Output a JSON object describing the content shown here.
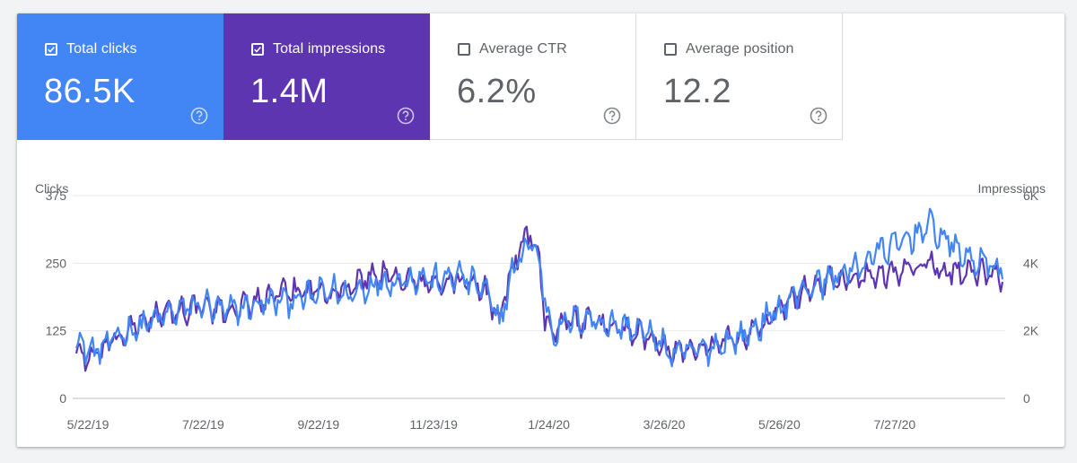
{
  "tiles": [
    {
      "id": "total-clicks",
      "label": "Total clicks",
      "value": "86.5K",
      "checked": true,
      "color": "#4285f4"
    },
    {
      "id": "total-impressions",
      "label": "Total impressions",
      "value": "1.4M",
      "checked": true,
      "color": "#5e35b1"
    },
    {
      "id": "average-ctr",
      "label": "Average CTR",
      "value": "6.2%",
      "checked": false,
      "color": "#ffffff"
    },
    {
      "id": "average-position",
      "label": "Average position",
      "value": "12.2",
      "checked": false,
      "color": "#ffffff"
    }
  ],
  "chart_data": {
    "type": "line",
    "y_left_label": "Clicks",
    "y_right_label": "Impressions",
    "y_left_ticks": [
      "375",
      "250",
      "125",
      "0"
    ],
    "y_right_ticks": [
      "6K",
      "4K",
      "2K",
      "0"
    ],
    "y_left_range": [
      0,
      375
    ],
    "y_right_range": [
      0,
      6000
    ],
    "x_ticks": [
      "5/22/19",
      "7/22/19",
      "9/22/19",
      "11/23/19",
      "1/24/20",
      "3/26/20",
      "5/26/20",
      "7/27/20"
    ],
    "grid": true,
    "series": [
      {
        "key": "clicks",
        "axis": "left",
        "color": "#4285f4",
        "anchors": [
          [
            0,
            110
          ],
          [
            8,
            85
          ],
          [
            15,
            95
          ],
          [
            25,
            120
          ],
          [
            40,
            140
          ],
          [
            55,
            160
          ],
          [
            70,
            175
          ],
          [
            80,
            160
          ],
          [
            95,
            170
          ],
          [
            110,
            180
          ],
          [
            125,
            185
          ],
          [
            140,
            200
          ],
          [
            150,
            190
          ],
          [
            165,
            215
          ],
          [
            180,
            220
          ],
          [
            190,
            225
          ],
          [
            200,
            215
          ],
          [
            210,
            230
          ],
          [
            225,
            200
          ],
          [
            233,
            140
          ],
          [
            240,
            230
          ],
          [
            245,
            265
          ],
          [
            250,
            295
          ],
          [
            255,
            250
          ],
          [
            258,
            190
          ],
          [
            262,
            120
          ],
          [
            270,
            140
          ],
          [
            280,
            150
          ],
          [
            290,
            140
          ],
          [
            300,
            135
          ],
          [
            310,
            125
          ],
          [
            320,
            110
          ],
          [
            328,
            80
          ],
          [
            335,
            85
          ],
          [
            345,
            90
          ],
          [
            355,
            100
          ],
          [
            370,
            120
          ],
          [
            380,
            145
          ],
          [
            390,
            175
          ],
          [
            400,
            200
          ],
          [
            410,
            215
          ],
          [
            420,
            230
          ],
          [
            430,
            240
          ],
          [
            440,
            270
          ],
          [
            450,
            280
          ],
          [
            460,
            300
          ],
          [
            470,
            320
          ],
          [
            480,
            290
          ],
          [
            490,
            260
          ],
          [
            500,
            250
          ],
          [
            510,
            240
          ]
        ],
        "noise": 30
      },
      {
        "key": "impressions",
        "axis": "right",
        "color": "#5e35b1",
        "anchors": [
          [
            0,
            1420
          ],
          [
            8,
            1150
          ],
          [
            15,
            1450
          ],
          [
            25,
            1840
          ],
          [
            40,
            2400
          ],
          [
            55,
            2560
          ],
          [
            70,
            2720
          ],
          [
            80,
            2560
          ],
          [
            95,
            2800
          ],
          [
            110,
            3040
          ],
          [
            125,
            3200
          ],
          [
            140,
            3200
          ],
          [
            150,
            3280
          ],
          [
            165,
            3680
          ],
          [
            180,
            3520
          ],
          [
            190,
            3440
          ],
          [
            200,
            3360
          ],
          [
            210,
            3520
          ],
          [
            225,
            3200
          ],
          [
            233,
            2400
          ],
          [
            240,
            3840
          ],
          [
            245,
            4480
          ],
          [
            250,
            4960
          ],
          [
            255,
            4160
          ],
          [
            258,
            2240
          ],
          [
            262,
            2080
          ],
          [
            270,
            2320
          ],
          [
            280,
            2240
          ],
          [
            290,
            2160
          ],
          [
            300,
            2080
          ],
          [
            310,
            1920
          ],
          [
            320,
            1760
          ],
          [
            328,
            1360
          ],
          [
            335,
            1520
          ],
          [
            345,
            1600
          ],
          [
            355,
            1680
          ],
          [
            370,
            1920
          ],
          [
            380,
            2240
          ],
          [
            390,
            2720
          ],
          [
            400,
            3200
          ],
          [
            410,
            3360
          ],
          [
            420,
            3520
          ],
          [
            430,
            3600
          ],
          [
            440,
            3680
          ],
          [
            450,
            3760
          ],
          [
            460,
            3840
          ],
          [
            470,
            4000
          ],
          [
            480,
            3760
          ],
          [
            490,
            3680
          ],
          [
            500,
            3680
          ],
          [
            510,
            3600
          ]
        ],
        "noise": 420
      }
    ],
    "points": 511
  }
}
